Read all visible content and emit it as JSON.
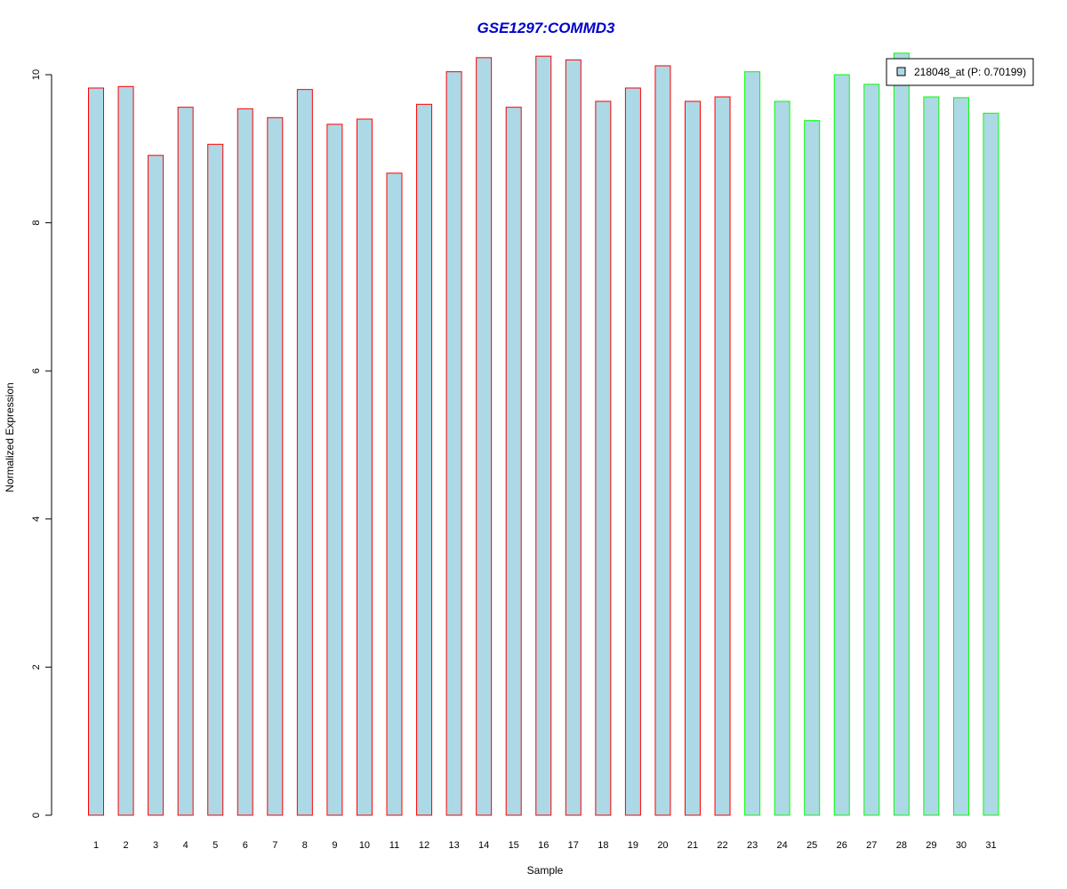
{
  "chart_data": {
    "type": "bar",
    "title": "GSE1297:COMMD3",
    "xlabel": "Sample",
    "ylabel": "Normalized Expression",
    "ylim": [
      0,
      10
    ],
    "yticks": [
      0,
      2,
      4,
      6,
      8,
      10
    ],
    "categories": [
      "1",
      "2",
      "3",
      "4",
      "5",
      "6",
      "7",
      "8",
      "9",
      "10",
      "11",
      "12",
      "13",
      "14",
      "15",
      "16",
      "17",
      "18",
      "19",
      "20",
      "21",
      "22",
      "23",
      "24",
      "25",
      "26",
      "27",
      "28",
      "29",
      "30",
      "31"
    ],
    "series": [
      {
        "name": "218048_at (P: 0.70199)",
        "values": [
          9.82,
          9.84,
          8.91,
          9.56,
          9.06,
          9.54,
          9.42,
          9.8,
          9.33,
          9.4,
          8.67,
          9.6,
          10.04,
          10.23,
          9.56,
          10.25,
          10.2,
          9.64,
          9.82,
          10.12,
          9.64,
          9.7,
          10.04,
          9.64,
          9.38,
          10.0,
          9.87,
          10.29,
          9.7,
          9.69,
          9.48
        ],
        "border_colors": [
          "#ff0000",
          "#ff0000",
          "#ff0000",
          "#ff0000",
          "#ff0000",
          "#ff0000",
          "#ff0000",
          "#ff0000",
          "#ff0000",
          "#ff0000",
          "#ff0000",
          "#ff0000",
          "#ff0000",
          "#ff0000",
          "#ff0000",
          "#ff0000",
          "#ff0000",
          "#ff0000",
          "#ff0000",
          "#ff0000",
          "#ff0000",
          "#ff0000",
          "#00ff00",
          "#00ff00",
          "#00ff00",
          "#00ff00",
          "#00ff00",
          "#00ff00",
          "#00ff00",
          "#00ff00",
          "#00ff00"
        ]
      }
    ],
    "fill_color": "#add8e6",
    "title_color": "#0000cd",
    "legend_position": "top-right",
    "grid": false
  }
}
